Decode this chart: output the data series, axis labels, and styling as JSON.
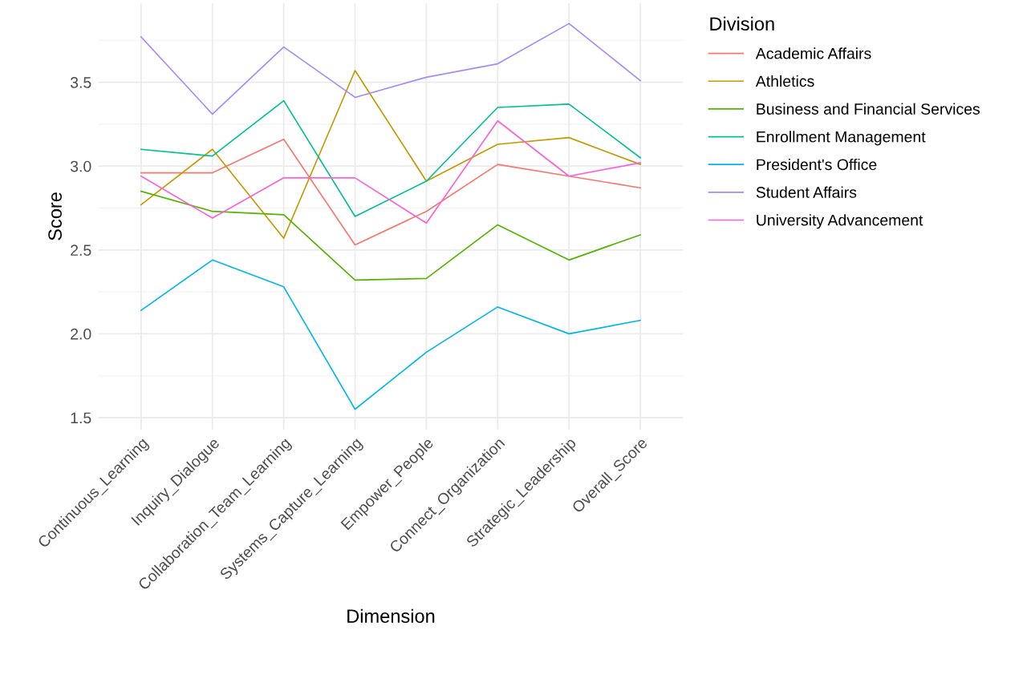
{
  "chart_data": {
    "type": "line",
    "xlabel": "Dimension",
    "ylabel": "Score",
    "legend_title": "Division",
    "legend": "right",
    "grid": true,
    "categories": [
      "Continuous_Learning",
      "Inquiry_Dialogue",
      "Collaboration_Team_Learning",
      "Systems_Capture_Learning",
      "Empower_People",
      "Connect_Organization",
      "Strategic_Leadership",
      "Overall_Score"
    ],
    "ylim": [
      1.43,
      3.97
    ],
    "yticks": [
      {
        "value": 1.5,
        "label": "1.5"
      },
      {
        "value": 2.0,
        "label": "2.0"
      },
      {
        "value": 2.5,
        "label": "2.5"
      },
      {
        "value": 3.0,
        "label": "3.0"
      },
      {
        "value": 3.5,
        "label": "3.5"
      }
    ],
    "series": [
      {
        "name": "Academic Affairs",
        "color": "#f8766d",
        "values": [
          2.96,
          2.96,
          3.16,
          2.53,
          2.73,
          3.01,
          2.94,
          2.87
        ]
      },
      {
        "name": "Athletics",
        "color": "#c49a00",
        "values": [
          2.77,
          3.1,
          2.57,
          3.57,
          2.91,
          3.13,
          3.17,
          3.01
        ]
      },
      {
        "name": "Business and Financial Services",
        "color": "#53b400",
        "values": [
          2.85,
          2.73,
          2.71,
          2.32,
          2.33,
          2.65,
          2.44,
          2.59
        ]
      },
      {
        "name": "Enrollment Management",
        "color": "#00c094",
        "values": [
          3.1,
          3.06,
          3.39,
          2.7,
          2.91,
          3.35,
          3.37,
          3.05
        ]
      },
      {
        "name": "President's Office",
        "color": "#00b6eb",
        "values": [
          2.14,
          2.44,
          2.28,
          1.55,
          1.89,
          2.16,
          2.0,
          2.08
        ]
      },
      {
        "name": "Student Affairs",
        "color": "#a58aff",
        "values": [
          3.77,
          3.31,
          3.71,
          3.41,
          3.53,
          3.61,
          3.85,
          3.51
        ]
      },
      {
        "name": "University Advancement",
        "color": "#fb61d7",
        "values": [
          2.94,
          2.69,
          2.93,
          2.93,
          2.66,
          3.27,
          2.94,
          3.02
        ]
      }
    ]
  }
}
